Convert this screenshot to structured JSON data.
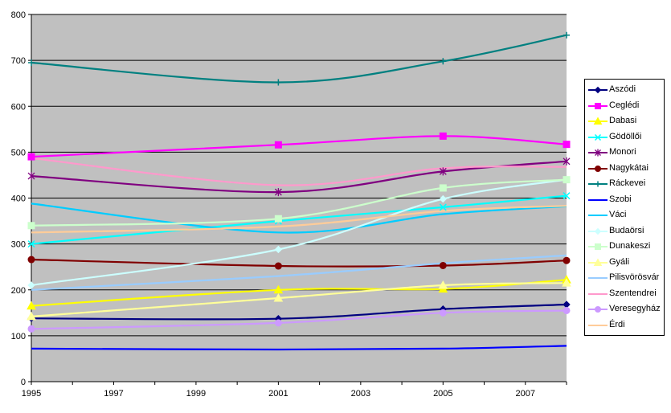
{
  "chart_data": {
    "type": "line",
    "title": "",
    "xlabel": "",
    "ylabel": "",
    "xlim": [
      1995,
      2008
    ],
    "ylim": [
      0,
      800
    ],
    "x": [
      1995,
      2001,
      2005,
      2008
    ],
    "x_ticks": [
      1995,
      1997,
      1999,
      2001,
      2003,
      2005,
      2007
    ],
    "y_ticks": [
      0,
      100,
      200,
      300,
      400,
      500,
      600,
      700,
      800
    ],
    "grid": "horizontal",
    "legend_position": "right",
    "plot_background": "#c0c0c0",
    "series": [
      {
        "name": "Aszódi",
        "color": "#000080",
        "marker": "diamond",
        "values": [
          138,
          137,
          158,
          168
        ]
      },
      {
        "name": "Ceglédi",
        "color": "#ff00ff",
        "marker": "square",
        "values": [
          490,
          516,
          535,
          517
        ]
      },
      {
        "name": "Dabasi",
        "color": "#ffff00",
        "marker": "triangle",
        "values": [
          165,
          200,
          202,
          222
        ]
      },
      {
        "name": "Gödöllői",
        "color": "#00ffff",
        "marker": "x",
        "values": [
          300,
          350,
          380,
          405
        ]
      },
      {
        "name": "Monori",
        "color": "#800080",
        "marker": "star",
        "values": [
          448,
          413,
          458,
          480
        ]
      },
      {
        "name": "Nagykátai",
        "color": "#800000",
        "marker": "circle",
        "values": [
          266,
          252,
          253,
          264
        ]
      },
      {
        "name": "Ráckevei",
        "color": "#008080",
        "marker": "plus",
        "values": [
          695,
          652,
          698,
          755
        ]
      },
      {
        "name": "Szobi",
        "color": "#0000ff",
        "marker": "none",
        "values": [
          72,
          70,
          72,
          78
        ]
      },
      {
        "name": "Váci",
        "color": "#00ccff",
        "marker": "none",
        "values": [
          388,
          325,
          365,
          382
        ]
      },
      {
        "name": "Budaörsi",
        "color": "#ccffff",
        "marker": "diamond",
        "values": [
          210,
          288,
          398,
          440
        ]
      },
      {
        "name": "Dunakeszi",
        "color": "#ccffcc",
        "marker": "square",
        "values": [
          340,
          355,
          422,
          440
        ]
      },
      {
        "name": "Gyáli",
        "color": "#ffff99",
        "marker": "triangle",
        "values": [
          142,
          182,
          210,
          215
        ]
      },
      {
        "name": "Pilisvörösvár",
        "color": "#99ccff",
        "marker": "none",
        "values": [
          200,
          230,
          258,
          275
        ]
      },
      {
        "name": "Szentendrei",
        "color": "#ff99cc",
        "marker": "none",
        "values": [
          487,
          428,
          465,
          468
        ]
      },
      {
        "name": "Veresegyház",
        "color": "#cc99ff",
        "marker": "circle",
        "values": [
          115,
          128,
          150,
          155
        ]
      },
      {
        "name": "Érdi",
        "color": "#ffcc99",
        "marker": "none",
        "values": [
          325,
          338,
          372,
          383
        ]
      }
    ]
  }
}
